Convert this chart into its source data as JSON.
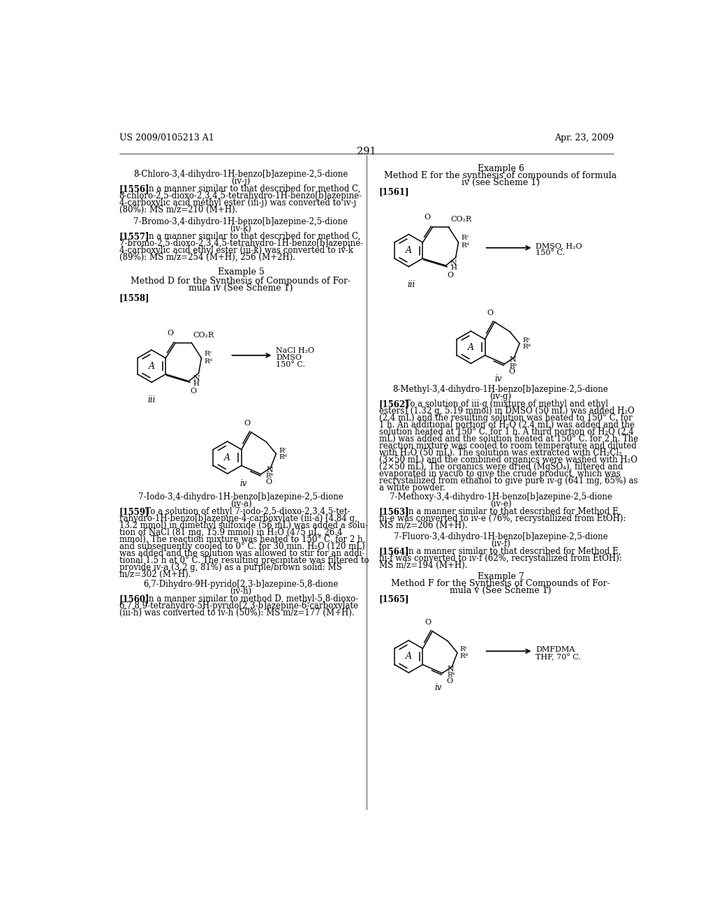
{
  "background_color": "#ffffff",
  "header_left": "US 2009/0105213 A1",
  "header_right": "Apr. 23, 2009",
  "page_number": "291"
}
